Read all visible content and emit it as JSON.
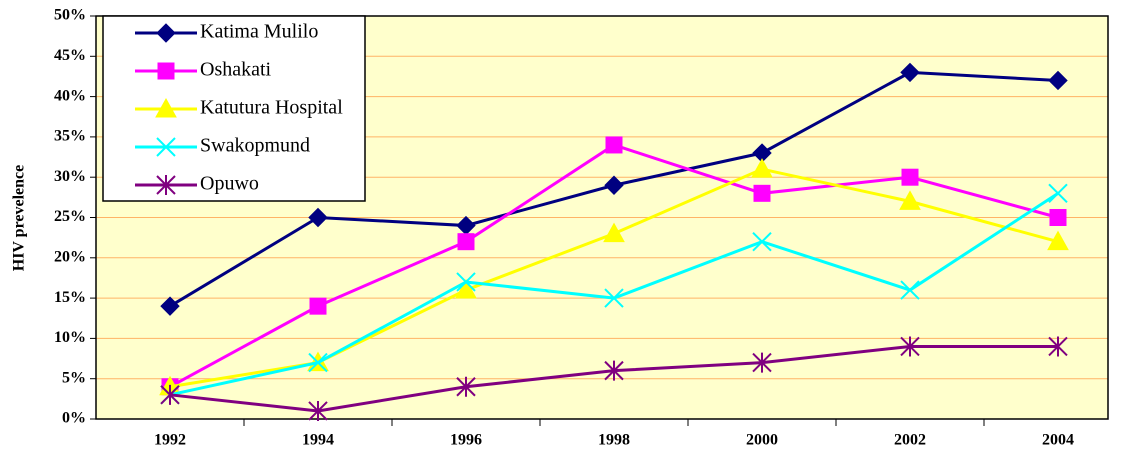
{
  "chart_data": {
    "type": "line",
    "y_label": "HIV prevelence",
    "categories": [
      "1992",
      "1994",
      "1996",
      "1998",
      "2000",
      "2002",
      "2004"
    ],
    "series": [
      {
        "name": "Katima Mulilo",
        "color": "#000080",
        "marker": "diamond",
        "values": [
          14,
          25,
          24,
          29,
          33,
          43,
          42
        ]
      },
      {
        "name": "Oshakati",
        "color": "#FF00FF",
        "marker": "square",
        "values": [
          4,
          14,
          22,
          34,
          28,
          30,
          25
        ]
      },
      {
        "name": "Katutura Hospital",
        "color": "#FFFF00",
        "marker": "triangle",
        "values": [
          4,
          7,
          16,
          23,
          31,
          27,
          22
        ]
      },
      {
        "name": "Swakopmund",
        "color": "#00FFFF",
        "marker": "x",
        "values": [
          3,
          7,
          17,
          15,
          22,
          16,
          28
        ]
      },
      {
        "name": "Opuwo",
        "color": "#800080",
        "marker": "star",
        "values": [
          3,
          1,
          4,
          6,
          7,
          9,
          9
        ]
      }
    ],
    "ylim": [
      0,
      50
    ],
    "yticks": [
      {
        "value": 0,
        "label": "0%"
      },
      {
        "value": 5,
        "label": "5%"
      },
      {
        "value": 10,
        "label": "10%"
      },
      {
        "value": 15,
        "label": "15%"
      },
      {
        "value": 20,
        "label": "20%"
      },
      {
        "value": 25,
        "label": "25%"
      },
      {
        "value": 30,
        "label": "30%"
      },
      {
        "value": 35,
        "label": "35%"
      },
      {
        "value": 40,
        "label": "40%"
      },
      {
        "value": 45,
        "label": "45%"
      },
      {
        "value": 50,
        "label": "50%"
      }
    ],
    "grid": true,
    "background": "#FFFFCC",
    "grid_color": "#FFB366",
    "legend": "top-left"
  }
}
